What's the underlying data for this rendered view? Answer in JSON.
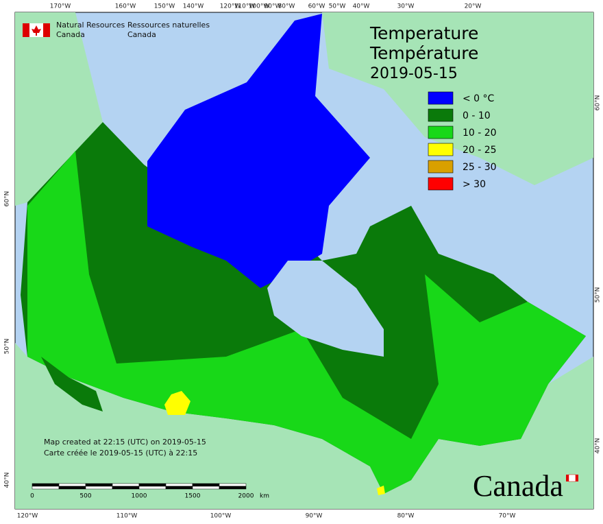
{
  "header": {
    "agency_en_1": "Natural Resources",
    "agency_en_2": "Canada",
    "agency_fr_1": "Ressources naturelles",
    "agency_fr_2": "Canada"
  },
  "title": {
    "line1": "Temperature",
    "line2": "Température",
    "date": "2019-05-15"
  },
  "legend": [
    {
      "label": "< 0 °C",
      "color": "#0000ff"
    },
    {
      "label": "0 - 10",
      "color": "#0a7a0a"
    },
    {
      "label": "10 - 20",
      "color": "#18d818"
    },
    {
      "label": "20 - 25",
      "color": "#ffff00"
    },
    {
      "label": "25 - 30",
      "color": "#d9a000"
    },
    {
      "label": "> 30",
      "color": "#ff0000"
    }
  ],
  "credits": [
    "Map created at 22:15 (UTC) on 2019-05-15",
    "Carte créée le 2019-05-15 (UTC) à 22:15"
  ],
  "scale_bar": {
    "labels": [
      "0",
      "500",
      "1000",
      "1500",
      "2000"
    ],
    "unit": "km"
  },
  "graticule": {
    "top": [
      "170°W",
      "160°W",
      "150°W",
      "140°W",
      "120°W",
      "110°W",
      "100°W",
      "90°W",
      "80°W",
      "60°W",
      "50°W",
      "40°W",
      "30°W",
      "20°W"
    ],
    "bottom": [
      "120°W",
      "110°W",
      "100°W",
      "90°W",
      "80°W",
      "70°W"
    ],
    "left": [
      "60°N",
      "50°N",
      "40°N"
    ],
    "right": [
      "60°N",
      "50°N",
      "40°N"
    ]
  },
  "wordmark": "Canada"
}
